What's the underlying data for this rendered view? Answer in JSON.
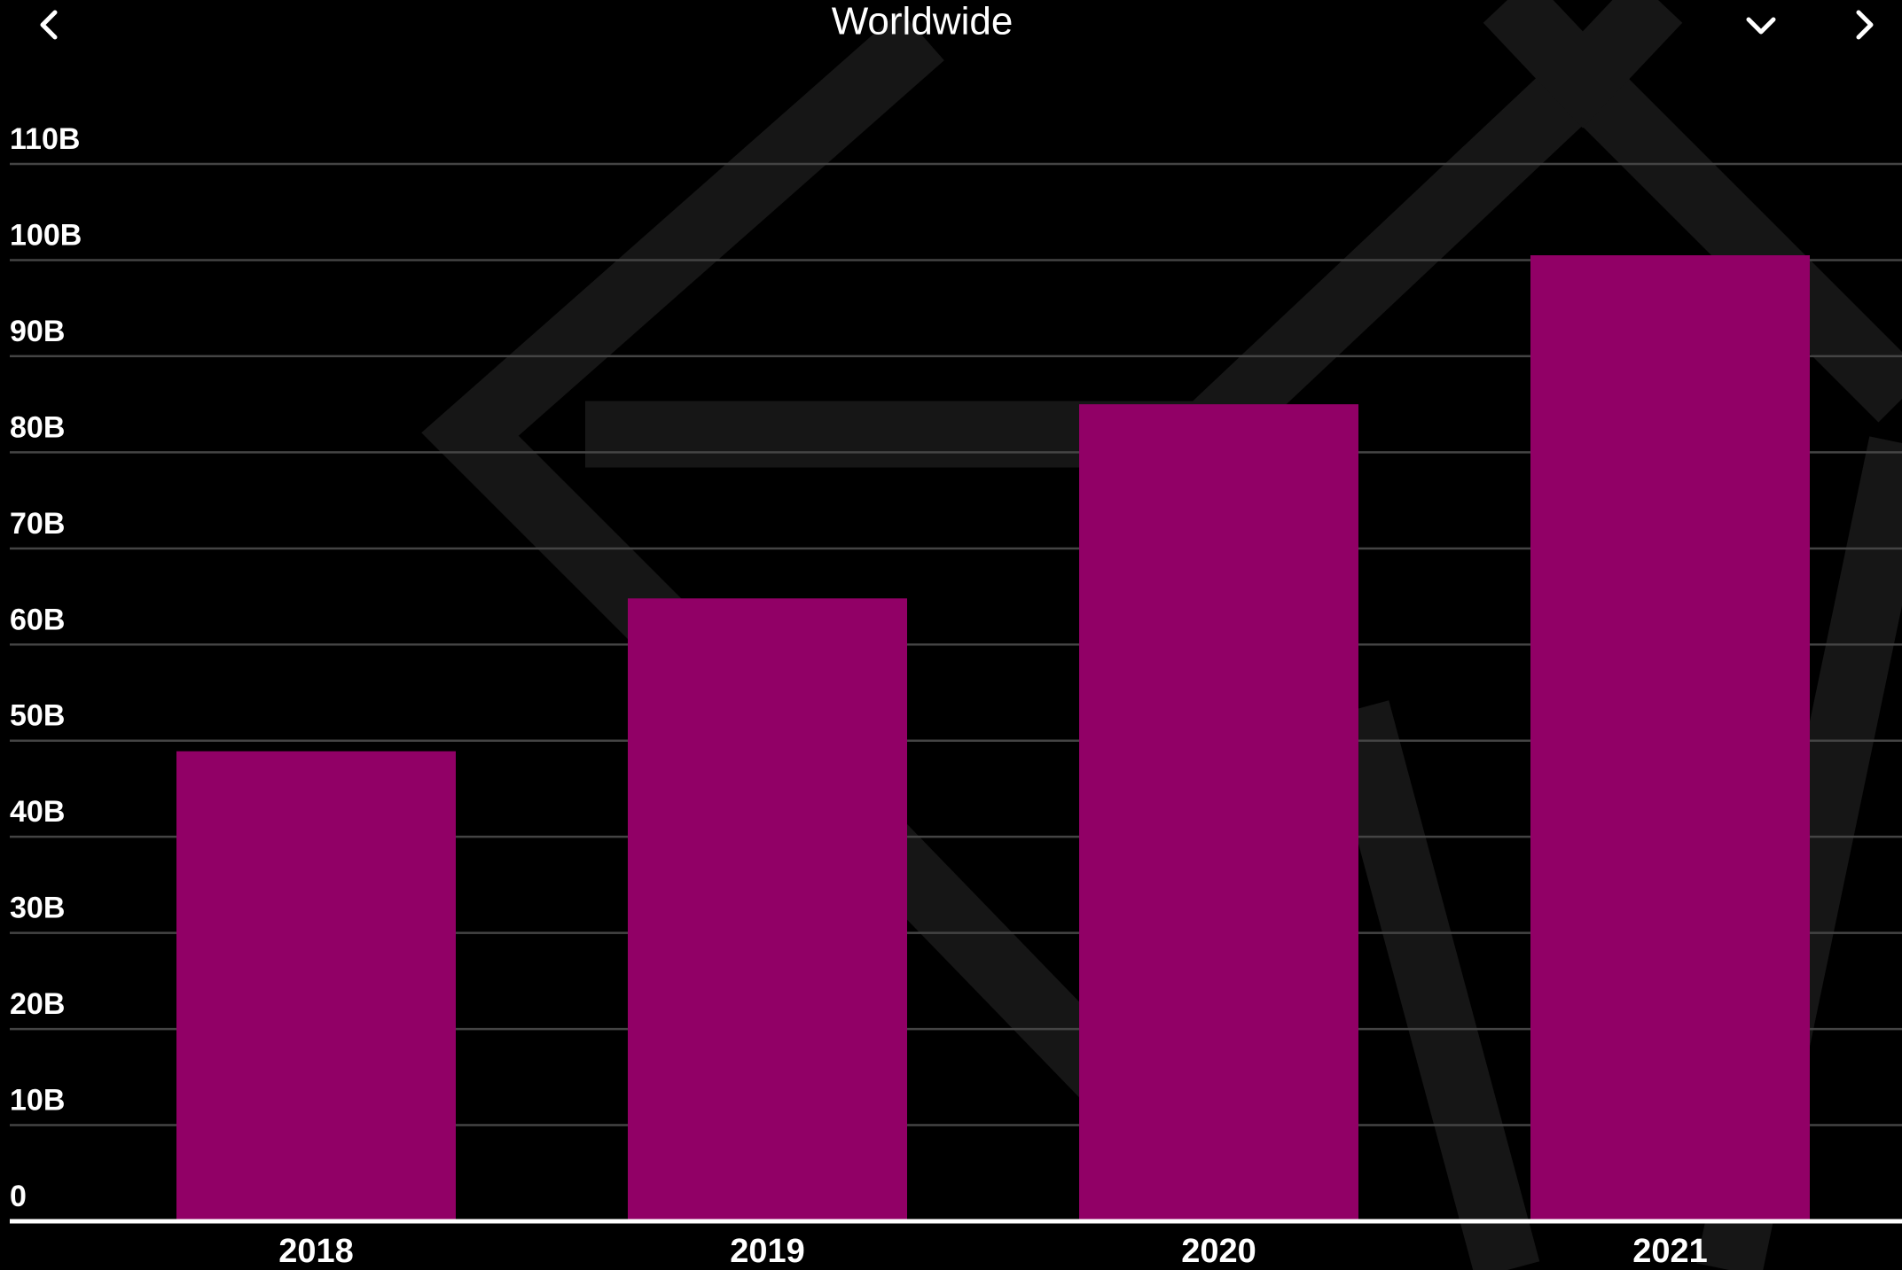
{
  "chart_data": {
    "type": "bar",
    "title": "Worldwide",
    "categories": [
      "2018",
      "2019",
      "2020",
      "2021"
    ],
    "values": [
      48.9,
      64.8,
      85.0,
      100.5
    ],
    "color": "#910066",
    "ylim": [
      0,
      110
    ],
    "yticks": [
      0,
      {
        "value": 10,
        "label": "10B"
      },
      {
        "value": 20,
        "label": "20B"
      },
      {
        "value": 30,
        "label": "30B"
      },
      {
        "value": 40,
        "label": "40B"
      },
      {
        "value": 50,
        "label": "50B"
      },
      {
        "value": 60,
        "label": "60B"
      },
      {
        "value": 70,
        "label": "70B"
      },
      {
        "value": 80,
        "label": "80B"
      },
      {
        "value": 90,
        "label": "90B"
      },
      {
        "value": 100,
        "label": "100B"
      },
      {
        "value": 110,
        "label": "110B"
      }
    ],
    "grid": true
  }
}
